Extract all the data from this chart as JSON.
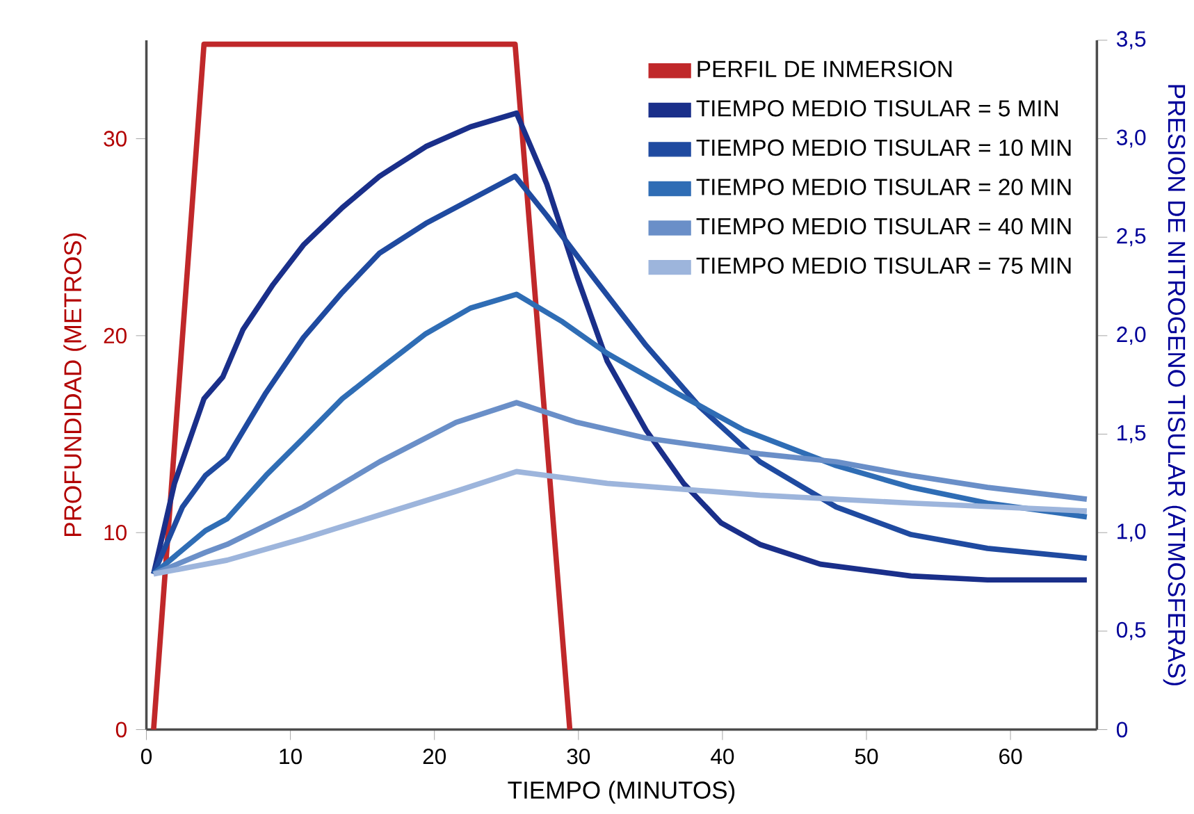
{
  "chart_data": {
    "type": "line",
    "xlabel": "TIEMPO (MINUTOS)",
    "ylabel": "PROFUNDIDAD (METROS)",
    "y2label": "PRESION DE NITROGENO TISULAR (ATMOSFERAS)",
    "xlim": [
      0,
      66
    ],
    "xticks": [
      0,
      10,
      20,
      30,
      40,
      50,
      60
    ],
    "ylim": [
      0,
      35
    ],
    "yticks": [
      0,
      10,
      20,
      30
    ],
    "y2lim": [
      0,
      3.5
    ],
    "y2ticks": [
      0,
      {
        "value": 0.5,
        "label": "0,5"
      },
      {
        "value": 1.0,
        "label": "1,0"
      },
      {
        "value": 1.5,
        "label": "1,5"
      },
      {
        "value": 2.0,
        "label": "2,0"
      },
      {
        "value": 2.5,
        "label": "2,5"
      },
      {
        "value": 3.0,
        "label": "3,0"
      },
      {
        "value": 3.5,
        "label": "3,5"
      }
    ],
    "legend": "top right",
    "grid": false,
    "series": [
      {
        "name": "PERFIL DE INMERSION",
        "color": "#c0282a",
        "axis": "y",
        "x": [
          0.5,
          4.0,
          25.6,
          29.4
        ],
        "values": [
          0,
          34.8,
          34.8,
          0
        ]
      },
      {
        "name": "TIEMPO MEDIO TISULAR = 5 MIN",
        "color": "#1a2f8a",
        "axis": "y2",
        "x": [
          0.5,
          1.95,
          4,
          5.3,
          6.7,
          8.8,
          10.9,
          13.6,
          16.2,
          19.4,
          22.5,
          25.7,
          27.8,
          29.9,
          32.0,
          34.7,
          37.3,
          39.9,
          42.6,
          46.8,
          53.1,
          58.4,
          65.3
        ],
        "values": [
          0.79,
          1.25,
          1.68,
          1.79,
          2.03,
          2.26,
          2.46,
          2.65,
          2.81,
          2.96,
          3.06,
          3.13,
          2.77,
          2.3,
          1.87,
          1.52,
          1.25,
          1.05,
          0.94,
          0.84,
          0.78,
          0.76,
          0.76
        ]
      },
      {
        "name": "TIEMPO MEDIO TISULAR = 10 MIN",
        "color": "#1f4aa0",
        "axis": "y2",
        "x": [
          0.5,
          2.5,
          4.1,
          5.6,
          8.3,
          10.9,
          13.6,
          16.2,
          19.4,
          22.5,
          25.6,
          27.8,
          31,
          34.7,
          38.4,
          42.6,
          47.9,
          53.1,
          58.4,
          65.3
        ],
        "values": [
          0.79,
          1.13,
          1.29,
          1.38,
          1.71,
          1.99,
          2.22,
          2.42,
          2.57,
          2.69,
          2.81,
          2.61,
          2.3,
          1.95,
          1.64,
          1.36,
          1.13,
          0.99,
          0.92,
          0.87
        ]
      },
      {
        "name": "TIEMPO MEDIO TISULAR = 20 MIN",
        "color": "#2f6db5",
        "axis": "y2",
        "x": [
          0.5,
          4.1,
          5.6,
          8.3,
          10.9,
          13.6,
          16.2,
          19.4,
          22.5,
          25.7,
          28.9,
          32.0,
          36.3,
          41.5,
          47.9,
          53.1,
          58.4,
          65.3
        ],
        "values": [
          0.79,
          1.01,
          1.07,
          1.29,
          1.48,
          1.68,
          1.83,
          2.01,
          2.14,
          2.21,
          2.07,
          1.91,
          1.73,
          1.52,
          1.34,
          1.23,
          1.15,
          1.08
        ]
      },
      {
        "name": "TIEMPO MEDIO TISULAR = 40 MIN",
        "color": "#6a8fc8",
        "axis": "y2",
        "x": [
          0.5,
          4.1,
          5.6,
          10.9,
          16.2,
          21.5,
          25.7,
          29.9,
          34.7,
          42.6,
          47.9,
          53.1,
          58.4,
          65.3
        ],
        "values": [
          0.79,
          0.9,
          0.94,
          1.13,
          1.36,
          1.56,
          1.66,
          1.56,
          1.48,
          1.4,
          1.36,
          1.29,
          1.23,
          1.17
        ]
      },
      {
        "name": "TIEMPO MEDIO TISULAR = 75 MIN",
        "color": "#9db5dc",
        "axis": "y2",
        "x": [
          0.5,
          5.6,
          10.9,
          16.2,
          21.5,
          25.7,
          32.0,
          42.6,
          53.1,
          65.3
        ],
        "values": [
          0.79,
          0.86,
          0.97,
          1.09,
          1.21,
          1.31,
          1.25,
          1.19,
          1.15,
          1.11
        ]
      }
    ]
  }
}
